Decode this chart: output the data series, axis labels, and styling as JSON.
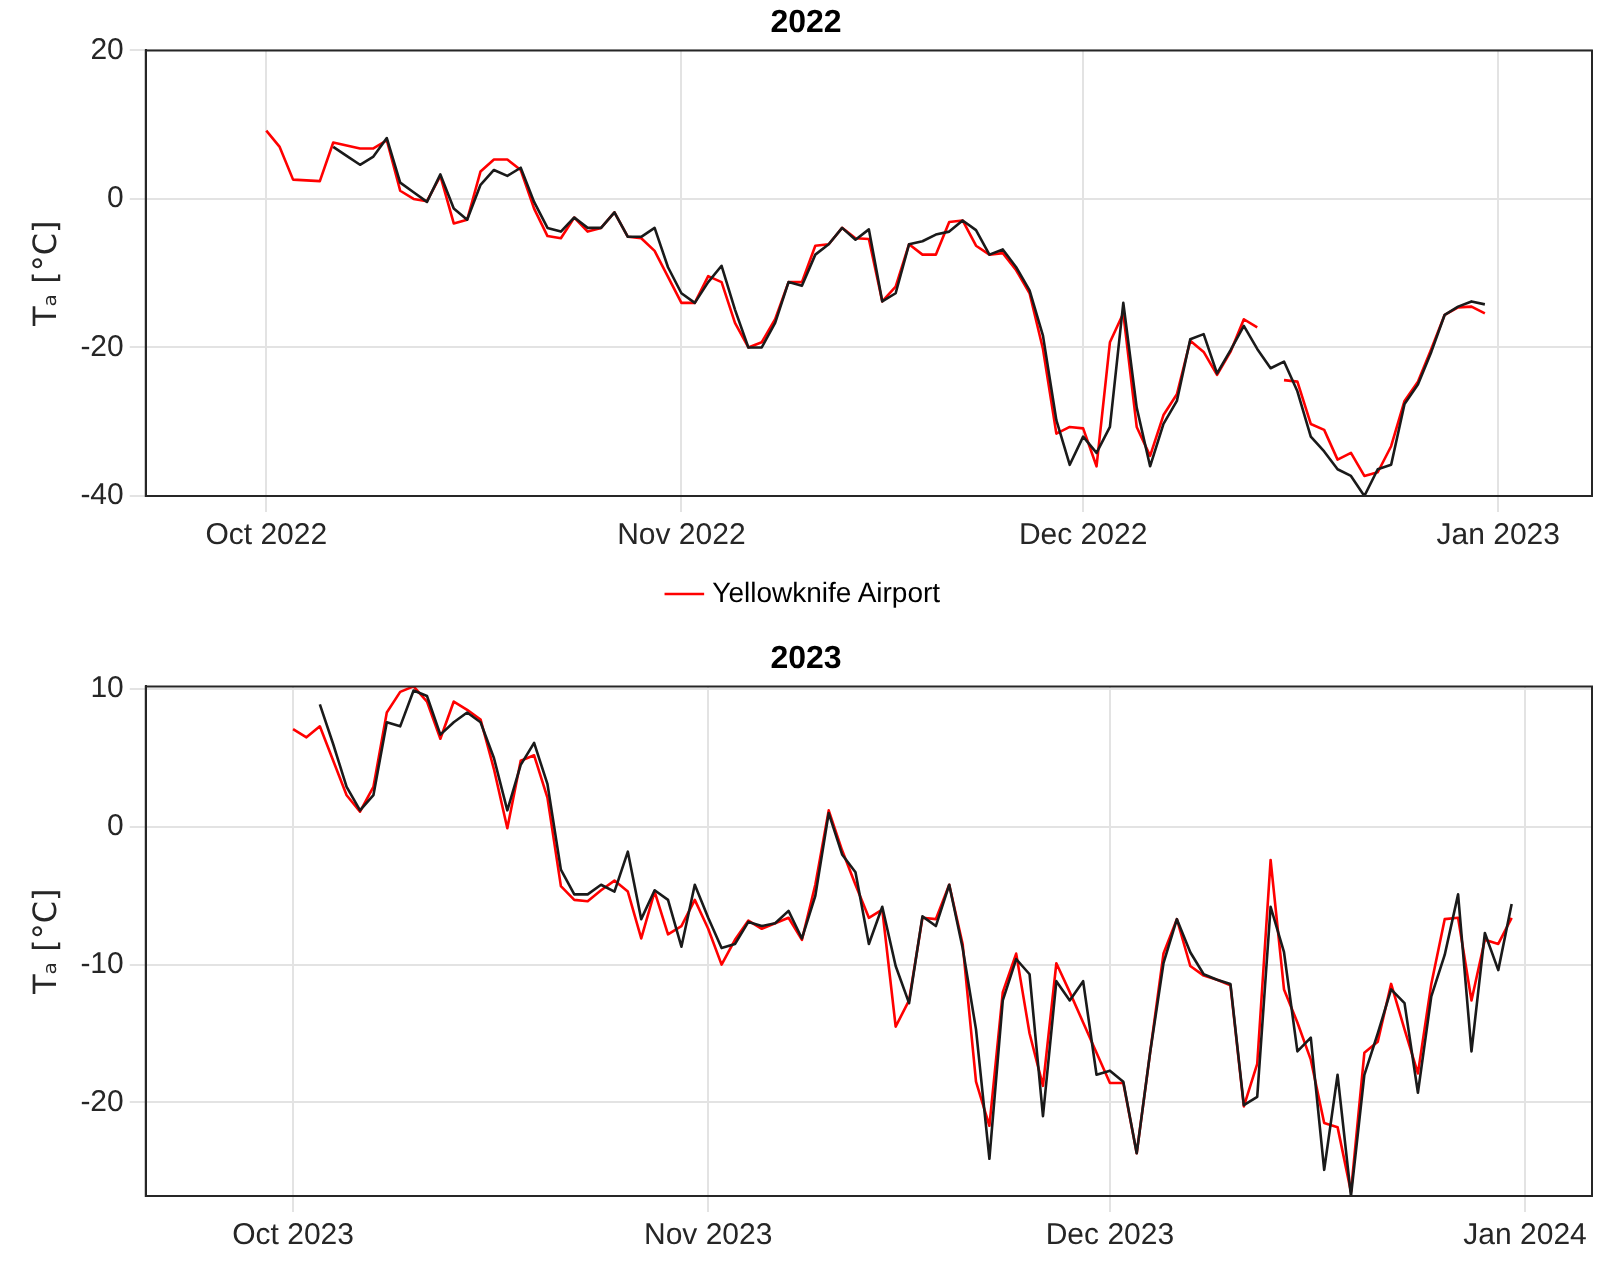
{
  "chart_data": [
    {
      "type": "line",
      "title": "2022",
      "ylabel": "Tₐ [°C]",
      "legend": "bottom",
      "grid": true,
      "x": [
        "2022-10-01",
        "2022-10-02",
        "2022-10-03",
        "2022-10-04",
        "2022-10-05",
        "2022-10-06",
        "2022-10-07",
        "2022-10-08",
        "2022-10-09",
        "2022-10-10",
        "2022-10-11",
        "2022-10-12",
        "2022-10-13",
        "2022-10-14",
        "2022-10-15",
        "2022-10-16",
        "2022-10-17",
        "2022-10-18",
        "2022-10-19",
        "2022-10-20",
        "2022-10-21",
        "2022-10-22",
        "2022-10-23",
        "2022-10-24",
        "2022-10-25",
        "2022-10-26",
        "2022-10-27",
        "2022-10-28",
        "2022-10-29",
        "2022-10-30",
        "2022-10-31",
        "2022-11-01",
        "2022-11-02",
        "2022-11-03",
        "2022-11-04",
        "2022-11-05",
        "2022-11-06",
        "2022-11-07",
        "2022-11-08",
        "2022-11-09",
        "2022-11-10",
        "2022-11-11",
        "2022-11-12",
        "2022-11-13",
        "2022-11-14",
        "2022-11-15",
        "2022-11-16",
        "2022-11-17",
        "2022-11-18",
        "2022-11-19",
        "2022-11-20",
        "2022-11-21",
        "2022-11-22",
        "2022-11-23",
        "2022-11-24",
        "2022-11-25",
        "2022-11-26",
        "2022-11-27",
        "2022-11-28",
        "2022-11-29",
        "2022-11-30",
        "2022-12-01",
        "2022-12-02",
        "2022-12-03",
        "2022-12-04",
        "2022-12-05",
        "2022-12-06",
        "2022-12-07",
        "2022-12-08",
        "2022-12-09",
        "2022-12-10",
        "2022-12-11",
        "2022-12-12",
        "2022-12-13",
        "2022-12-14",
        "2022-12-15",
        "2022-12-16",
        "2022-12-17",
        "2022-12-18",
        "2022-12-19",
        "2022-12-20",
        "2022-12-21",
        "2022-12-22",
        "2022-12-23",
        "2022-12-24",
        "2022-12-25",
        "2022-12-26",
        "2022-12-27",
        "2022-12-28",
        "2022-12-29",
        "2022-12-30",
        "2022-12-31"
      ],
      "xlim": [
        "2022-09-22",
        "2023-01-08"
      ],
      "xticks": [
        {
          "value": "2022-10-01",
          "label": "Oct 2022"
        },
        {
          "value": "2022-11-01",
          "label": "Nov 2022"
        },
        {
          "value": "2022-12-01",
          "label": "Dec 2022"
        },
        {
          "value": "2023-01-01",
          "label": "Jan 2023"
        }
      ],
      "ylim": [
        -40,
        20
      ],
      "yticks": [
        -40,
        -20,
        0,
        20
      ],
      "series": [
        {
          "color": "#1a1a1a",
          "values": [
            null,
            null,
            null,
            null,
            null,
            7.0,
            5.8,
            4.6,
            5.7,
            8.2,
            2.2,
            0.9,
            -0.4,
            3.3,
            -1.3,
            -2.8,
            1.9,
            3.9,
            3.1,
            4.2,
            -0.4,
            -3.9,
            -4.4,
            -2.5,
            -3.9,
            -3.9,
            -1.8,
            -5.1,
            -5.1,
            -3.9,
            -9.2,
            -12.7,
            -14.0,
            -11.2,
            -9.0,
            -14.9,
            -20.0,
            -20.0,
            -16.7,
            -11.2,
            -11.7,
            -7.5,
            -6.1,
            -3.9,
            -5.5,
            -4.1,
            -13.8,
            -12.7,
            -6.1,
            -5.7,
            -4.8,
            -4.4,
            -2.9,
            -4.2,
            -7.5,
            -6.8,
            -9.2,
            -12.3,
            -18.4,
            -29.8,
            -35.8,
            -32.0,
            -34.2,
            -30.7,
            -14.0,
            -28.1,
            -36.0,
            -30.3,
            -27.2,
            -18.9,
            -18.2,
            -23.5,
            -20.4,
            -17.1,
            -20.2,
            -22.8,
            -21.9,
            -25.9,
            -32.0,
            -34.0,
            -36.4,
            -37.3,
            -40.0,
            -36.4,
            -35.8,
            -27.6,
            -25.0,
            -20.6,
            -15.6,
            -14.5,
            -13.8,
            -14.2
          ]
        },
        {
          "name": "Yellowknife Airport",
          "color": "#ff0000",
          "values": [
            9.2,
            7.0,
            2.6,
            2.5,
            2.4,
            7.6,
            7.2,
            6.8,
            6.8,
            7.9,
            1.1,
            0.0,
            -0.3,
            3.1,
            -3.3,
            -2.8,
            3.7,
            5.3,
            5.3,
            3.9,
            -1.3,
            -5.0,
            -5.3,
            -2.5,
            -4.4,
            -3.9,
            -1.8,
            -5.1,
            -5.3,
            -7.0,
            -10.5,
            -14.0,
            -14.0,
            -10.4,
            -11.2,
            -16.7,
            -20.0,
            -19.3,
            -16.2,
            -11.2,
            -11.2,
            -6.3,
            -6.1,
            -3.9,
            -5.3,
            -5.4,
            -13.8,
            -11.8,
            -6.1,
            -7.5,
            -7.5,
            -3.1,
            -2.9,
            -6.3,
            -7.5,
            -7.3,
            -9.6,
            -12.7,
            -20.2,
            -31.6,
            -30.7,
            -30.9,
            -36.0,
            -19.3,
            -15.4,
            -30.7,
            -34.6,
            -29.1,
            -26.3,
            -19.1,
            -20.6,
            -23.7,
            -20.6,
            -16.2,
            -17.3,
            null,
            -24.4,
            -24.6,
            -30.3,
            -31.1,
            -35.1,
            -34.2,
            -37.3,
            -36.8,
            -33.3,
            -27.2,
            -24.6,
            -20.2,
            -15.6,
            -14.6,
            -14.5,
            -15.4
          ]
        }
      ]
    },
    {
      "type": "line",
      "title": "2023",
      "ylabel": "Tₐ [°C]",
      "grid": true,
      "x": [
        "2023-10-01",
        "2023-10-02",
        "2023-10-03",
        "2023-10-04",
        "2023-10-05",
        "2023-10-06",
        "2023-10-07",
        "2023-10-08",
        "2023-10-09",
        "2023-10-10",
        "2023-10-11",
        "2023-10-12",
        "2023-10-13",
        "2023-10-14",
        "2023-10-15",
        "2023-10-16",
        "2023-10-17",
        "2023-10-18",
        "2023-10-19",
        "2023-10-20",
        "2023-10-21",
        "2023-10-22",
        "2023-10-23",
        "2023-10-24",
        "2023-10-25",
        "2023-10-26",
        "2023-10-27",
        "2023-10-28",
        "2023-10-29",
        "2023-10-30",
        "2023-10-31",
        "2023-11-01",
        "2023-11-02",
        "2023-11-03",
        "2023-11-04",
        "2023-11-05",
        "2023-11-06",
        "2023-11-07",
        "2023-11-08",
        "2023-11-09",
        "2023-11-10",
        "2023-11-11",
        "2023-11-12",
        "2023-11-13",
        "2023-11-14",
        "2023-11-15",
        "2023-11-16",
        "2023-11-17",
        "2023-11-18",
        "2023-11-19",
        "2023-11-20",
        "2023-11-21",
        "2023-11-22",
        "2023-11-23",
        "2023-11-24",
        "2023-11-25",
        "2023-11-26",
        "2023-11-27",
        "2023-11-28",
        "2023-11-29",
        "2023-11-30",
        "2023-12-01",
        "2023-12-02",
        "2023-12-03",
        "2023-12-04",
        "2023-12-05",
        "2023-12-06",
        "2023-12-07",
        "2023-12-08",
        "2023-12-09",
        "2023-12-10",
        "2023-12-11",
        "2023-12-12",
        "2023-12-13",
        "2023-12-14",
        "2023-12-15",
        "2023-12-16",
        "2023-12-17",
        "2023-12-18",
        "2023-12-19",
        "2023-12-20",
        "2023-12-21",
        "2023-12-22",
        "2023-12-23",
        "2023-12-24",
        "2023-12-25",
        "2023-12-26",
        "2023-12-27",
        "2023-12-28",
        "2023-12-29",
        "2023-12-30",
        "2023-12-31"
      ],
      "xlim": [
        "2023-09-20",
        "2024-01-06"
      ],
      "xticks": [
        {
          "value": "2023-10-01",
          "label": "Oct 2023"
        },
        {
          "value": "2023-11-01",
          "label": "Nov 2023"
        },
        {
          "value": "2023-12-01",
          "label": "Dec 2023"
        },
        {
          "value": "2024-01-01",
          "label": "Jan 2024"
        }
      ],
      "ylim": [
        -26.8,
        10.2
      ],
      "yticks": [
        -20,
        -10,
        0,
        10
      ],
      "series": [
        {
          "color": "#1a1a1a",
          "values": [
            null,
            null,
            8.9,
            6.0,
            2.9,
            1.2,
            2.3,
            7.6,
            7.3,
            9.9,
            9.5,
            6.7,
            7.6,
            8.3,
            7.6,
            5.0,
            1.2,
            4.5,
            6.1,
            3.1,
            -3.1,
            -4.9,
            -4.9,
            -4.2,
            -4.7,
            -1.8,
            -6.7,
            -4.6,
            -5.3,
            -8.7,
            -4.2,
            -6.6,
            -8.8,
            -8.5,
            -6.9,
            -7.2,
            -7.0,
            -6.1,
            -8.1,
            -5.0,
            1.0,
            -2.0,
            -3.3,
            -8.5,
            -5.8,
            -10.1,
            -12.8,
            -6.5,
            -7.2,
            -4.2,
            -8.8,
            -14.7,
            -24.1,
            -12.6,
            -9.6,
            -10.7,
            -21.0,
            -11.2,
            -12.6,
            -11.2,
            -18.0,
            -17.7,
            -18.5,
            -23.7,
            -16.4,
            -9.9,
            -6.7,
            -9.1,
            -10.7,
            -11.1,
            -11.4,
            -20.2,
            -19.6,
            -5.8,
            -9.1,
            -16.3,
            -15.3,
            -24.9,
            -18.0,
            -26.8,
            -18.0,
            -15.0,
            -11.8,
            -12.8,
            -19.3,
            -12.3,
            -9.3,
            -4.9,
            -16.3,
            -7.7,
            -10.4,
            -5.6
          ]
        },
        {
          "color": "#ff0000",
          "values": [
            7.1,
            6.5,
            7.3,
            4.8,
            2.3,
            1.1,
            2.9,
            8.3,
            9.8,
            10.2,
            9.1,
            6.4,
            9.1,
            8.5,
            7.8,
            4.2,
            -0.1,
            4.8,
            5.2,
            2.1,
            -4.3,
            -5.3,
            -5.4,
            -4.6,
            -3.9,
            -4.7,
            -8.1,
            -4.7,
            -7.8,
            -7.2,
            -5.3,
            -7.4,
            -10.0,
            -8.2,
            -6.8,
            -7.4,
            -7.0,
            -6.6,
            -8.2,
            -4.2,
            1.2,
            -1.7,
            -4.2,
            -6.6,
            -6.0,
            -14.5,
            -12.6,
            -6.6,
            -6.7,
            -4.2,
            -8.5,
            -18.5,
            -21.7,
            -12.0,
            -9.2,
            -15.0,
            -18.8,
            -9.9,
            -12.0,
            -14.2,
            -16.4,
            -18.6,
            -18.6,
            -23.7,
            -16.4,
            -9.2,
            -6.7,
            -10.1,
            -10.8,
            -11.1,
            -11.5,
            -20.3,
            -17.2,
            -2.4,
            -11.8,
            -14.2,
            -16.9,
            -21.5,
            -21.8,
            -26.5,
            -16.4,
            -15.6,
            -11.4,
            -14.7,
            -17.9,
            -11.4,
            -6.7,
            -6.6,
            -12.6,
            -8.2,
            -8.5,
            -6.6
          ]
        }
      ]
    }
  ]
}
